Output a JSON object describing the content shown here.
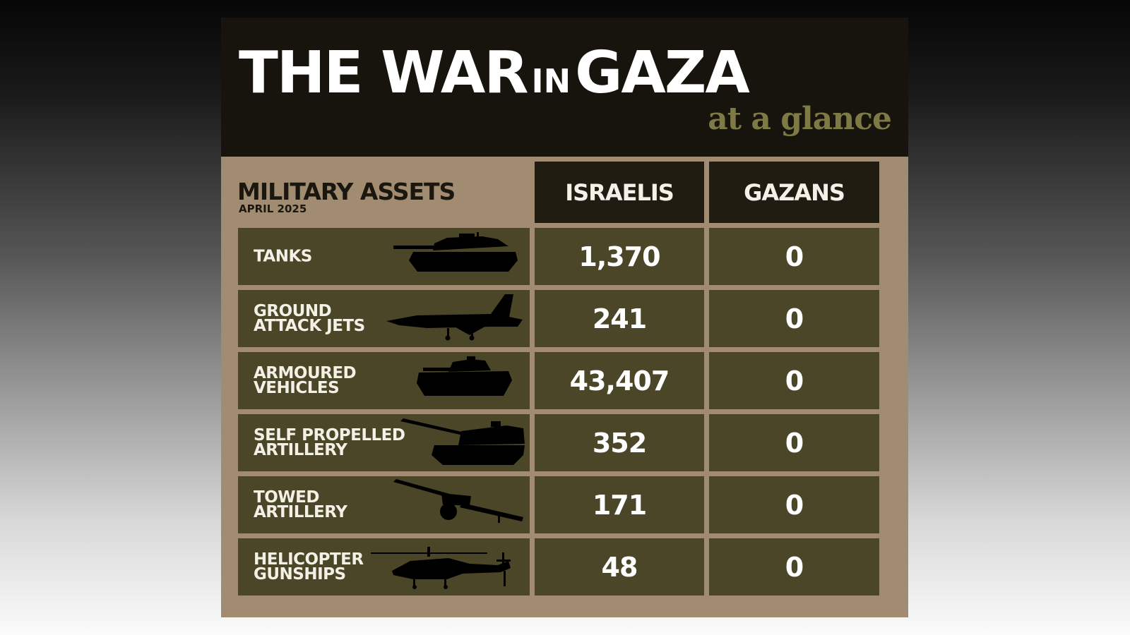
{
  "header": {
    "title_part1": "THE WAR",
    "title_in": "IN",
    "title_part2": "GAZA",
    "subtitle": "at a glance"
  },
  "section": {
    "title": "MILITARY ASSETS",
    "date": "APRIL 2025"
  },
  "columns": [
    "ISRAELIS",
    "GAZANS"
  ],
  "rows": [
    {
      "label": "TANKS",
      "israelis": "1,370",
      "gazans": "0",
      "icon": "tank-icon"
    },
    {
      "label": "GROUND\nATTACK JETS",
      "israelis": "241",
      "gazans": "0",
      "icon": "fighter-jet-icon"
    },
    {
      "label": "ARMOURED\nVEHICLES",
      "israelis": "43,407",
      "gazans": "0",
      "icon": "armoured-vehicle-icon"
    },
    {
      "label": "SELF PROPELLED\nARTILLERY",
      "israelis": "352",
      "gazans": "0",
      "icon": "self-propelled-artillery-icon"
    },
    {
      "label": "TOWED\nARTILLERY",
      "israelis": "171",
      "gazans": "0",
      "icon": "towed-artillery-icon"
    },
    {
      "label": "HELICOPTER\nGUNSHIPS",
      "israelis": "48",
      "gazans": "0",
      "icon": "helicopter-gunship-icon"
    }
  ],
  "colors": {
    "header_bg": "#17130d",
    "card_bg": "#a18c72",
    "cell_bg": "#4b4628",
    "column_header_bg": "#211c11",
    "subtitle": "#7d7a46"
  }
}
